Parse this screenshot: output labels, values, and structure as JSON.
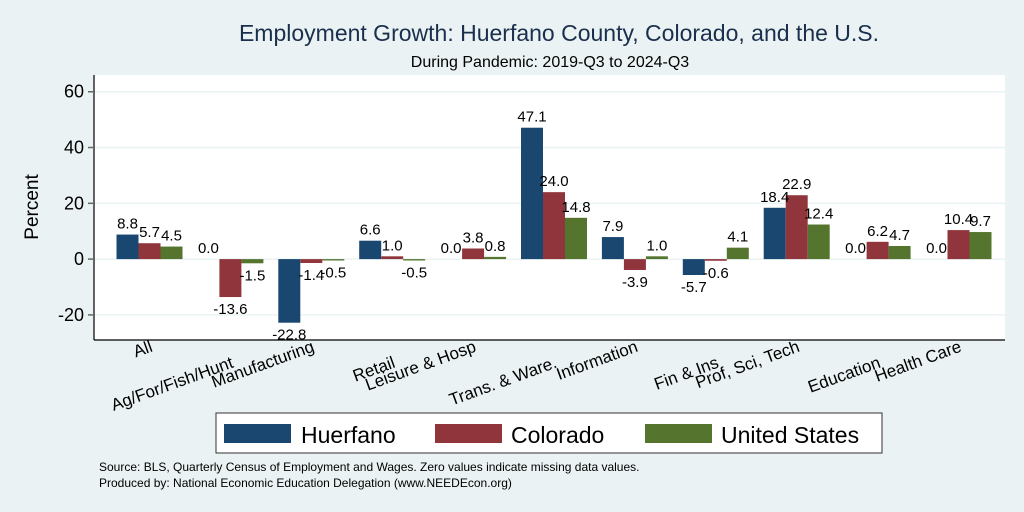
{
  "chart_data": {
    "type": "bar",
    "title": "Employment Growth: Huerfano County, Colorado, and the U.S.",
    "subtitle": "During Pandemic: 2019-Q3 to 2024-Q3",
    "xlabel": "",
    "ylabel": "Percent",
    "ylim": [
      -29,
      66
    ],
    "yticks": [
      60,
      40,
      20,
      0,
      -20
    ],
    "ytick_labels": [
      "60",
      "40",
      "20",
      "0",
      "-20"
    ],
    "grid": true,
    "legend_position": "bottom",
    "categories": [
      "All",
      "Ag/For/Fish/Hunt",
      "Manufacturing",
      "Retail",
      "Leisure & Hosp",
      "Trans. & Ware.",
      "Information",
      "Fin & Ins",
      "Prof, Sci, Tech",
      "Education",
      "Health Care"
    ],
    "series": [
      {
        "name": "Huerfano",
        "color": "#1a4770",
        "values": [
          8.8,
          0.0,
          -22.8,
          6.6,
          0.0,
          47.1,
          7.9,
          -5.7,
          18.4,
          0.0,
          0.0
        ],
        "labels": [
          "8.8",
          "0.0",
          "-22.8",
          "6.6",
          "0.0",
          "47.1",
          "7.9",
          "-5.7",
          "18.4",
          "0.0",
          "0.0"
        ]
      },
      {
        "name": "Colorado",
        "color": "#90353b",
        "values": [
          5.7,
          -13.6,
          -1.4,
          1.0,
          3.8,
          24.0,
          -3.9,
          -0.6,
          22.9,
          6.2,
          10.4
        ],
        "labels": [
          "5.7",
          "-13.6",
          "-1.4",
          "1.0",
          "3.8",
          "24.0",
          "-3.9",
          "-0.6",
          "22.9",
          "6.2",
          "10.4"
        ]
      },
      {
        "name": "United States",
        "color": "#55752f",
        "values": [
          4.5,
          -1.5,
          -0.5,
          -0.5,
          0.8,
          14.8,
          1.0,
          4.1,
          12.4,
          4.7,
          9.7
        ],
        "labels": [
          "4.5",
          "-1.5",
          "-0.5",
          "-0.5",
          "0.8",
          "14.8",
          "1.0",
          "4.1",
          "12.4",
          "4.7",
          "9.7"
        ]
      }
    ],
    "notes": [
      "Source: BLS, Quarterly Census of Employment and Wages. Zero values indicate missing data values.",
      "Produced by: National Economic Education Delegation (www.NEEDEcon.org)"
    ]
  }
}
